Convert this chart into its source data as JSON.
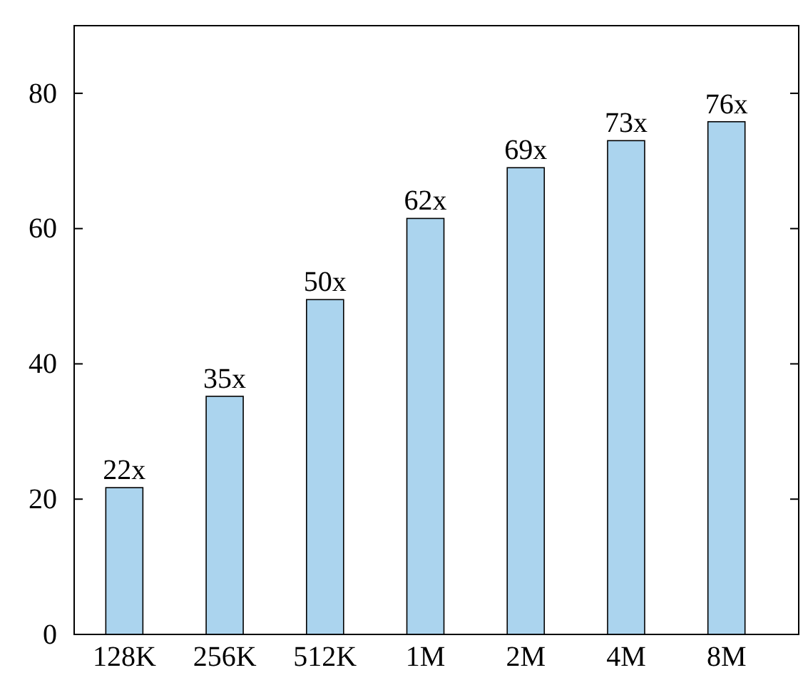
{
  "chart_data": {
    "type": "bar",
    "categories": [
      "128K",
      "256K",
      "512K",
      "1M",
      "2M",
      "4M",
      "8M"
    ],
    "values": [
      21.7,
      35.2,
      49.5,
      61.5,
      69,
      73,
      75.8
    ],
    "value_labels": [
      "22x",
      "35x",
      "50x",
      "62x",
      "69x",
      "73x",
      "76x"
    ],
    "color": "#abd4ee",
    "ylim": [
      0,
      90
    ],
    "yticks": [
      0,
      20,
      40,
      60,
      80
    ],
    "grid": false
  }
}
